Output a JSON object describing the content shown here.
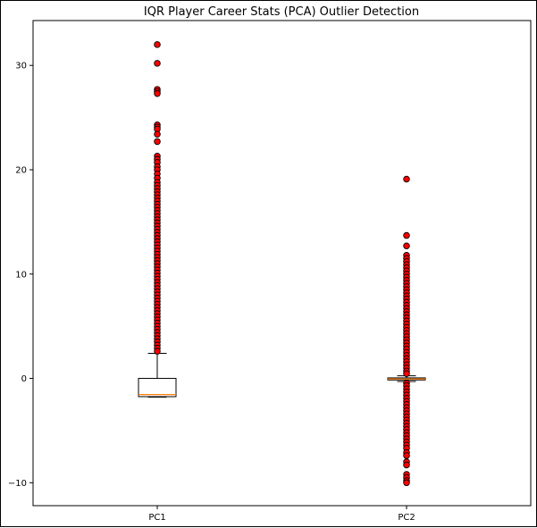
{
  "chart_data": {
    "type": "box",
    "title": "IQR Player Career Stats (PCA) Outlier Detection",
    "xlabel": "",
    "ylabel": "",
    "ylim": [
      -12.2,
      34.3
    ],
    "yticks": [
      -10,
      0,
      10,
      20,
      30
    ],
    "ytick_labels": [
      "−10",
      "0",
      "10",
      "20",
      "30"
    ],
    "categories": [
      "PC1",
      "PC2"
    ],
    "grid": false,
    "colors": {
      "box": "#000000",
      "median": "#ff7f0e",
      "outlier_fill": "#ff0000",
      "outlier_edge": "#000000"
    },
    "boxes": [
      {
        "name": "PC1",
        "whisker_low": -1.8,
        "q1": -1.75,
        "median": -1.55,
        "q3": 0.0,
        "whisker_high": 2.4,
        "outliers": [
          32.0,
          30.2,
          27.7,
          27.5,
          27.3,
          24.3,
          24.1,
          23.9,
          23.4,
          22.7,
          21.3,
          21.0,
          20.7,
          20.3,
          20.0,
          19.6,
          19.2,
          18.8,
          18.5,
          18.2,
          17.9,
          17.6,
          17.3,
          17.0,
          16.7,
          16.4,
          16.1,
          15.8,
          15.5,
          15.2,
          14.9,
          14.6,
          14.3,
          14.0,
          13.7,
          13.4,
          13.1,
          12.8,
          12.5,
          12.2,
          11.9,
          11.6,
          11.3,
          11.0,
          10.7,
          10.4,
          10.1,
          9.8,
          9.5,
          9.2,
          8.9,
          8.6,
          8.3,
          8.0,
          7.7,
          7.4,
          7.1,
          6.8,
          6.5,
          6.2,
          5.9,
          5.6,
          5.3,
          5.0,
          4.7,
          4.4,
          4.1,
          3.8,
          3.5,
          3.2,
          2.9,
          2.6
        ]
      },
      {
        "name": "PC2",
        "whisker_low": -0.3,
        "q1": -0.15,
        "median": -0.05,
        "q3": 0.05,
        "whisker_high": 0.25,
        "outliers": [
          19.1,
          13.7,
          12.7,
          11.8,
          11.5,
          11.2,
          10.9,
          10.6,
          10.3,
          10.0,
          9.7,
          9.4,
          9.1,
          8.8,
          8.5,
          8.2,
          7.9,
          7.6,
          7.3,
          7.0,
          6.7,
          6.4,
          6.1,
          5.8,
          5.5,
          5.2,
          4.9,
          4.6,
          4.3,
          4.0,
          3.7,
          3.4,
          3.1,
          2.8,
          2.5,
          2.2,
          1.9,
          1.6,
          1.3,
          1.0,
          0.7,
          0.45,
          -0.45,
          -0.7,
          -1.0,
          -1.3,
          -1.6,
          -1.9,
          -2.2,
          -2.5,
          -2.8,
          -3.1,
          -3.4,
          -3.7,
          -4.0,
          -4.3,
          -4.6,
          -4.9,
          -5.2,
          -5.5,
          -5.8,
          -6.1,
          -6.4,
          -6.7,
          -7.1,
          -7.4,
          -8.0,
          -8.3,
          -9.2,
          -9.5,
          -9.8,
          -10.0
        ]
      }
    ]
  }
}
